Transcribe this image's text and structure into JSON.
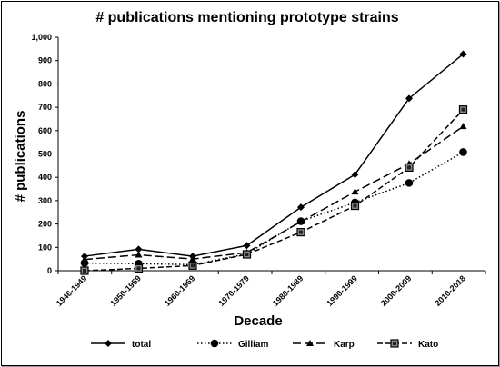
{
  "chart_data": {
    "type": "line",
    "title": "# publications mentioning prototype strains",
    "xlabel": "Decade",
    "ylabel": "# publications",
    "categories": [
      "1946-1949",
      "1950-1959",
      "1960-1969",
      "1970-1979",
      "1980-1989",
      "1990-1999",
      "2000-2009",
      "2010-2018"
    ],
    "ylim": [
      0,
      1000
    ],
    "ytick_labels": [
      "0",
      "100",
      "200",
      "300",
      "400",
      "500",
      "600",
      "700",
      "800",
      "900",
      "1,000"
    ],
    "grid": false,
    "legend_position": "bottom",
    "series": [
      {
        "name": "total",
        "values": [
          62,
          92,
          62,
          108,
          272,
          412,
          738,
          928
        ],
        "marker": "diamond",
        "dash": "solid",
        "color": "#000000"
      },
      {
        "name": "Gilliam",
        "values": [
          33,
          30,
          26,
          72,
          212,
          292,
          376,
          508
        ],
        "marker": "circle",
        "dash": "dotted",
        "color": "#000000"
      },
      {
        "name": "Karp",
        "values": [
          48,
          68,
          50,
          78,
          210,
          338,
          458,
          618
        ],
        "marker": "triangle",
        "dash": "longdash",
        "color": "#000000"
      },
      {
        "name": "Kato",
        "values": [
          0,
          10,
          22,
          70,
          165,
          278,
          442,
          690
        ],
        "marker": "square",
        "dash": "dash",
        "color": "#000000"
      }
    ]
  }
}
